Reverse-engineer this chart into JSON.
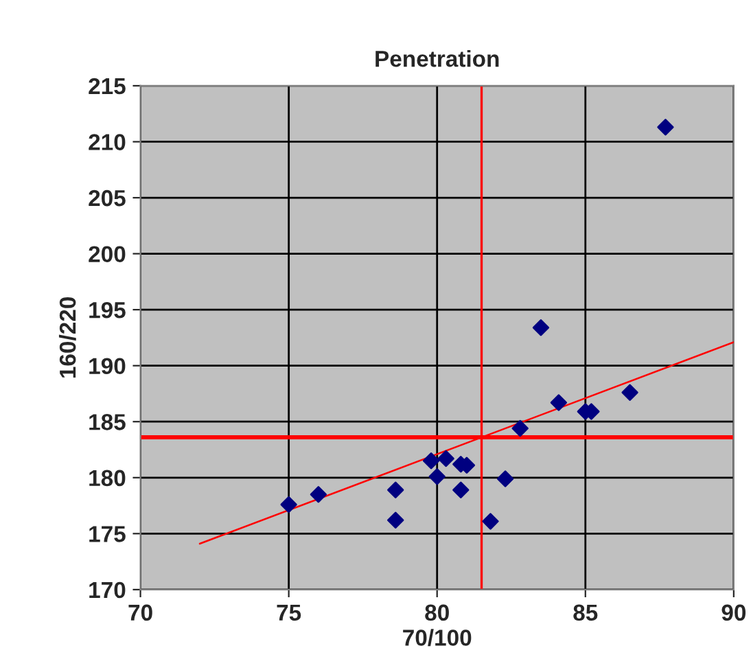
{
  "chart_data": {
    "type": "scatter",
    "title": "Penetration",
    "xlabel": "70/100",
    "ylabel": "160/220",
    "xlim": [
      70,
      90
    ],
    "xticks": [
      70,
      75,
      80,
      85,
      90
    ],
    "ylim": [
      170,
      215
    ],
    "yticks": [
      170,
      175,
      180,
      185,
      190,
      195,
      200,
      205,
      210,
      215
    ],
    "grid": true,
    "marker": "diamond",
    "series": [
      {
        "type": "scatter",
        "color": "#000080",
        "x": [
          75,
          76,
          78.6,
          78.6,
          79.8,
          80,
          80.3,
          80.8,
          81,
          80.8,
          81.8,
          82.3,
          82.8,
          83.5,
          84.1,
          85,
          85.2,
          86.5,
          87.7
        ],
        "values": [
          177.6,
          178.5,
          178.9,
          176.2,
          181.5,
          180.1,
          181.7,
          181.2,
          181.1,
          178.9,
          176.1,
          179.9,
          184.4,
          193.4,
          186.7,
          185.9,
          185.9,
          187.6,
          211.3
        ]
      },
      {
        "type": "line",
        "color": "#ff0000",
        "marker": "none",
        "x": [
          72,
          90
        ],
        "values": [
          174.1,
          192.1
        ]
      }
    ],
    "ref_lines": [
      {
        "axis": "x",
        "value": 81.5,
        "color": "#ff0000"
      },
      {
        "axis": "y",
        "value": 183.6,
        "color": "#ff0000"
      }
    ]
  }
}
